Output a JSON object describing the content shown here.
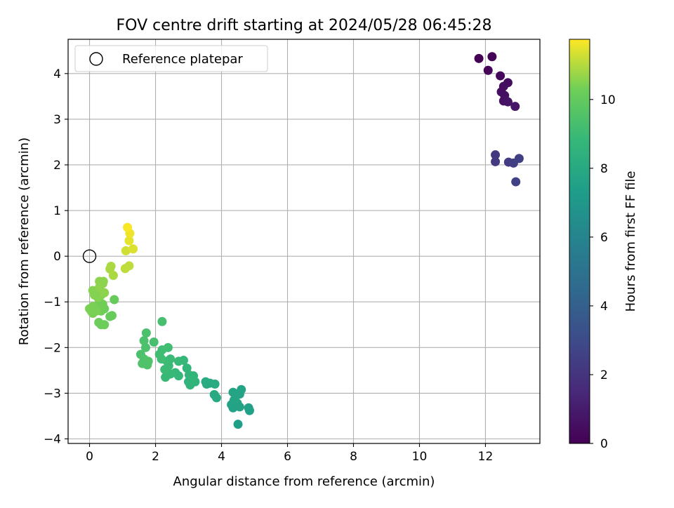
{
  "chart_data": {
    "type": "scatter",
    "title": "FOV centre drift starting at 2024/05/28 06:45:28",
    "xlabel": "Angular distance from reference (arcmin)",
    "ylabel": "Rotation from reference (arcmin)",
    "xlim": [
      -0.65,
      13.65
    ],
    "ylim": [
      -4.1,
      4.75
    ],
    "xticks": [
      0,
      2,
      4,
      6,
      8,
      10,
      12
    ],
    "yticks": [
      -4,
      -3,
      -2,
      -1,
      0,
      1,
      2,
      3,
      4
    ],
    "grid": true,
    "legend": {
      "location": "top-left",
      "entries": [
        "Reference platepar"
      ]
    },
    "reference_point": {
      "x": 0,
      "y": 0,
      "label": "Reference platepar"
    },
    "colorbar": {
      "label": "Hours from first FF file",
      "colormap": "viridis",
      "range": [
        0,
        11.75
      ],
      "ticks": [
        0,
        2,
        4,
        6,
        8,
        10
      ]
    },
    "series": [
      {
        "points": [
          [
            11.8,
            4.33,
            0.0
          ],
          [
            12.2,
            4.37,
            0.1
          ],
          [
            12.08,
            4.07,
            0.2
          ],
          [
            12.45,
            3.95,
            0.3
          ],
          [
            12.68,
            3.8,
            0.4
          ],
          [
            12.55,
            3.72,
            0.45
          ],
          [
            12.48,
            3.6,
            0.5
          ],
          [
            12.58,
            3.52,
            0.55
          ],
          [
            12.55,
            3.4,
            0.6
          ],
          [
            12.68,
            3.38,
            0.7
          ],
          [
            12.9,
            3.28,
            0.8
          ],
          [
            12.3,
            2.22,
            2.1
          ],
          [
            12.3,
            2.07,
            2.2
          ],
          [
            12.7,
            2.06,
            2.3
          ],
          [
            12.85,
            2.04,
            2.4
          ],
          [
            13.02,
            2.14,
            2.5
          ],
          [
            12.92,
            1.63,
            2.6
          ],
          [
            4.5,
            -3.68,
            7.4
          ],
          [
            4.85,
            -3.38,
            7.5
          ],
          [
            4.82,
            -3.32,
            7.5
          ],
          [
            4.35,
            -3.32,
            7.6
          ],
          [
            4.3,
            -3.25,
            7.6
          ],
          [
            4.4,
            -3.28,
            7.6
          ],
          [
            4.55,
            -3.3,
            7.6
          ],
          [
            4.48,
            -3.22,
            7.6
          ],
          [
            4.38,
            -3.15,
            7.7
          ],
          [
            4.45,
            -3.05,
            7.7
          ],
          [
            4.35,
            -2.98,
            7.7
          ],
          [
            4.55,
            -3.02,
            7.7
          ],
          [
            4.6,
            -2.92,
            7.7
          ],
          [
            3.85,
            -3.1,
            8.0
          ],
          [
            3.78,
            -3.03,
            8.0
          ],
          [
            3.55,
            -2.8,
            8.0
          ],
          [
            3.65,
            -2.78,
            8.0
          ],
          [
            3.8,
            -2.8,
            8.1
          ],
          [
            3.52,
            -2.75,
            8.1
          ],
          [
            3.05,
            -2.82,
            8.6
          ],
          [
            3.0,
            -2.75,
            8.6
          ],
          [
            3.2,
            -2.75,
            8.6
          ],
          [
            3.15,
            -2.62,
            8.7
          ],
          [
            3.02,
            -2.6,
            8.7
          ],
          [
            2.95,
            -2.45,
            8.7
          ],
          [
            2.85,
            -2.28,
            8.8
          ],
          [
            2.7,
            -2.62,
            8.8
          ],
          [
            2.6,
            -2.55,
            8.8
          ],
          [
            2.45,
            -2.58,
            8.9
          ],
          [
            2.7,
            -2.3,
            8.9
          ],
          [
            2.3,
            -2.65,
            8.9
          ],
          [
            2.28,
            -2.48,
            9.0
          ],
          [
            2.4,
            -2.4,
            9.0
          ],
          [
            2.35,
            -2.3,
            9.0
          ],
          [
            2.45,
            -2.25,
            9.0
          ],
          [
            2.18,
            -2.25,
            9.1
          ],
          [
            2.12,
            -2.15,
            9.1
          ],
          [
            2.2,
            -2.05,
            9.1
          ],
          [
            2.38,
            -2.0,
            9.1
          ],
          [
            2.2,
            -1.43,
            9.3
          ],
          [
            1.95,
            -1.88,
            9.3
          ],
          [
            1.72,
            -1.68,
            9.4
          ],
          [
            1.65,
            -1.85,
            9.4
          ],
          [
            1.7,
            -2.0,
            9.4
          ],
          [
            1.55,
            -2.15,
            9.4
          ],
          [
            1.65,
            -2.25,
            9.5
          ],
          [
            1.78,
            -2.3,
            9.5
          ],
          [
            1.6,
            -2.35,
            9.5
          ],
          [
            1.75,
            -2.38,
            9.5
          ],
          [
            0.75,
            -0.95,
            10.1
          ],
          [
            0.68,
            -1.3,
            10.1
          ],
          [
            0.62,
            -1.32,
            10.1
          ],
          [
            0.45,
            -1.5,
            10.2
          ],
          [
            0.35,
            -1.5,
            10.2
          ],
          [
            0.28,
            -1.45,
            10.2
          ],
          [
            0.45,
            -1.15,
            10.2
          ],
          [
            0.35,
            -1.2,
            10.3
          ],
          [
            0.4,
            -1.05,
            10.3
          ],
          [
            0.3,
            -1.0,
            10.3
          ],
          [
            0.2,
            -1.1,
            10.3
          ],
          [
            0.1,
            -1.1,
            10.4
          ],
          [
            0.05,
            -1.2,
            10.4
          ],
          [
            0.1,
            -1.25,
            10.4
          ],
          [
            0.2,
            -1.2,
            10.4
          ],
          [
            0.0,
            -1.15,
            10.4
          ],
          [
            0.25,
            -0.9,
            10.5
          ],
          [
            0.35,
            -0.85,
            10.5
          ],
          [
            0.15,
            -0.85,
            10.5
          ],
          [
            0.1,
            -0.75,
            10.5
          ],
          [
            0.2,
            -0.78,
            10.5
          ],
          [
            0.45,
            -0.8,
            10.6
          ],
          [
            0.3,
            -0.68,
            10.6
          ],
          [
            0.4,
            -0.6,
            10.6
          ],
          [
            0.3,
            -0.55,
            10.6
          ],
          [
            0.42,
            -0.55,
            10.6
          ],
          [
            0.72,
            -0.42,
            10.9
          ],
          [
            0.65,
            -0.22,
            10.9
          ],
          [
            0.62,
            -0.28,
            10.9
          ],
          [
            1.08,
            -0.27,
            11.1
          ],
          [
            1.2,
            -0.21,
            11.1
          ],
          [
            1.1,
            0.12,
            11.3
          ],
          [
            1.32,
            0.16,
            11.4
          ],
          [
            1.2,
            0.34,
            11.5
          ],
          [
            1.22,
            0.5,
            11.6
          ],
          [
            1.15,
            0.63,
            11.7
          ]
        ]
      }
    ]
  }
}
